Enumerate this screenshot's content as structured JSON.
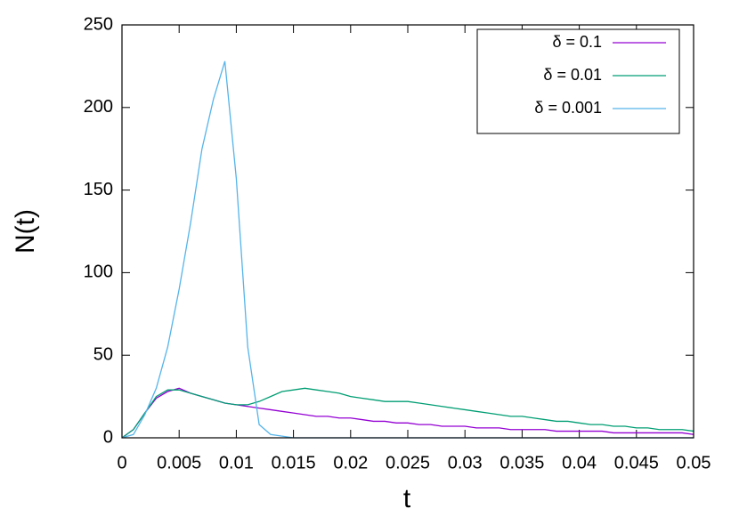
{
  "chart_data": {
    "type": "line",
    "xlabel": "t",
    "ylabel": "N(t)",
    "x": [
      0,
      0.001,
      0.002,
      0.003,
      0.004,
      0.005,
      0.006,
      0.007,
      0.008,
      0.009,
      0.01,
      0.011,
      0.012,
      0.013,
      0.014,
      0.015,
      0.016,
      0.017,
      0.018,
      0.019,
      0.02,
      0.021,
      0.022,
      0.023,
      0.024,
      0.025,
      0.026,
      0.027,
      0.028,
      0.029,
      0.03,
      0.031,
      0.032,
      0.033,
      0.034,
      0.035,
      0.036,
      0.037,
      0.038,
      0.039,
      0.04,
      0.041,
      0.042,
      0.043,
      0.044,
      0.045,
      0.046,
      0.047,
      0.048,
      0.049,
      0.05
    ],
    "series": [
      {
        "name": "δ = 0.1",
        "color": "#9400d3",
        "values": [
          0,
          5,
          15,
          24,
          28,
          30,
          27,
          25,
          23,
          21,
          20,
          19,
          18,
          17,
          16,
          15,
          14,
          13,
          13,
          12,
          12,
          11,
          10,
          10,
          9,
          9,
          8,
          8,
          7,
          7,
          7,
          6,
          6,
          6,
          5,
          5,
          5,
          5,
          4,
          4,
          4,
          4,
          4,
          3,
          3,
          3,
          3,
          3,
          3,
          3,
          2
        ]
      },
      {
        "name": "δ = 0.01",
        "color": "#009e73",
        "values": [
          0,
          5,
          15,
          25,
          29,
          29,
          27,
          25,
          23,
          21,
          20,
          20,
          22,
          25,
          28,
          29,
          30,
          29,
          28,
          27,
          25,
          24,
          23,
          22,
          22,
          22,
          21,
          20,
          19,
          18,
          17,
          16,
          15,
          14,
          13,
          13,
          12,
          11,
          10,
          10,
          9,
          8,
          8,
          7,
          7,
          6,
          6,
          5,
          5,
          5,
          4
        ]
      },
      {
        "name": "δ = 0.001",
        "color": "#56b4e9",
        "values": [
          0,
          2,
          14,
          30,
          55,
          90,
          130,
          175,
          205,
          228,
          157,
          55,
          8,
          2,
          1,
          0,
          0,
          0,
          0,
          0,
          0,
          0,
          0,
          0,
          0,
          0,
          0,
          0,
          0,
          0,
          0,
          0,
          0,
          0,
          0,
          0,
          0,
          0,
          0,
          0,
          0,
          0,
          0,
          0,
          0,
          0,
          0,
          0,
          0,
          0,
          0
        ]
      }
    ],
    "xlim": [
      0,
      0.05
    ],
    "xticks": [
      0,
      0.005,
      0.01,
      0.015,
      0.02,
      0.025,
      0.03,
      0.035,
      0.04,
      0.045,
      0.05
    ],
    "ylim": [
      0,
      250
    ],
    "yticks": [
      0,
      50,
      100,
      150,
      200,
      250
    ],
    "legend": "top-right"
  }
}
